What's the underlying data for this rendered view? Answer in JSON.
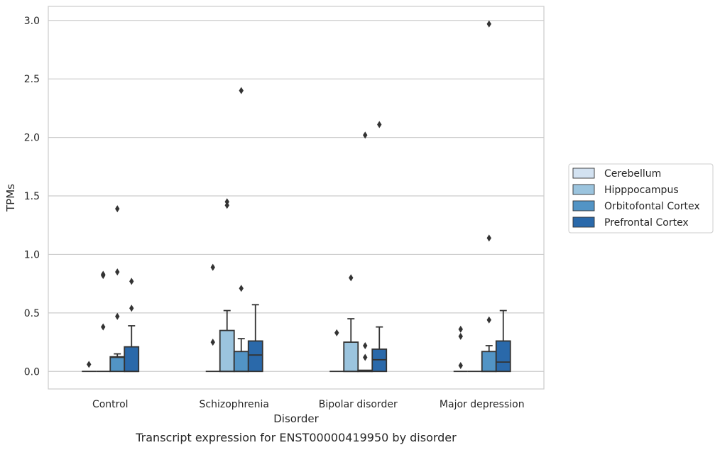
{
  "chart_data": {
    "type": "box",
    "caption": "Transcript expression for ENST00000419950 by disorder",
    "xlabel": "Disorder",
    "ylabel": "TPMs",
    "ylim": [
      -0.15,
      3.12
    ],
    "yticks": [
      0.0,
      0.5,
      1.0,
      1.5,
      2.0,
      2.5,
      3.0
    ],
    "ytick_labels": [
      "0.0",
      "0.5",
      "1.0",
      "1.5",
      "2.0",
      "2.5",
      "3.0"
    ],
    "grid": "horizontal",
    "legend_position": "right",
    "categories": [
      "Control",
      "Schizophrenia",
      "Bipolar disorder",
      "Major depression"
    ],
    "series": [
      {
        "name": "Cerebellum",
        "color": "#d3e2f1",
        "boxes": [
          {
            "q1": 0,
            "median": 0,
            "q3": 0,
            "whisker_low": 0,
            "whisker_high": 0,
            "outliers": [
              0.06
            ]
          },
          {
            "q1": 0,
            "median": 0,
            "q3": 0,
            "whisker_low": 0,
            "whisker_high": 0,
            "outliers": [
              0.25,
              0.89
            ]
          },
          {
            "q1": 0,
            "median": 0,
            "q3": 0,
            "whisker_low": 0,
            "whisker_high": 0,
            "outliers": [
              0.33
            ]
          },
          {
            "q1": 0,
            "median": 0,
            "q3": 0,
            "whisker_low": 0,
            "whisker_high": 0,
            "outliers": [
              0.05,
              0.3,
              0.36
            ]
          }
        ]
      },
      {
        "name": "Hipppocampus",
        "color": "#9bc4de",
        "boxes": [
          {
            "q1": 0,
            "median": 0,
            "q3": 0,
            "whisker_low": 0,
            "whisker_high": 0,
            "outliers": [
              0.38,
              0.82,
              0.83
            ]
          },
          {
            "q1": 0,
            "median": 0,
            "q3": 0.35,
            "whisker_low": 0,
            "whisker_high": 0.52,
            "outliers": [
              1.42,
              1.45
            ]
          },
          {
            "q1": 0,
            "median": 0,
            "q3": 0.25,
            "whisker_low": 0,
            "whisker_high": 0.45,
            "outliers": [
              0.8
            ]
          },
          {
            "q1": 0,
            "median": 0,
            "q3": 0,
            "whisker_low": 0,
            "whisker_high": 0,
            "outliers": []
          }
        ]
      },
      {
        "name": "Orbitofontal Cortex",
        "color": "#5294c5",
        "boxes": [
          {
            "q1": 0,
            "median": 0.12,
            "q3": 0.125,
            "whisker_low": 0,
            "whisker_high": 0.15,
            "outliers": [
              0.47,
              0.85,
              1.39
            ]
          },
          {
            "q1": 0,
            "median": 0,
            "q3": 0.17,
            "whisker_low": 0,
            "whisker_high": 0.28,
            "outliers": [
              0.71,
              2.4
            ]
          },
          {
            "q1": 0,
            "median": 0,
            "q3": 0.01,
            "whisker_low": 0,
            "whisker_high": 0.01,
            "outliers": [
              0.12,
              0.22,
              2.02
            ]
          },
          {
            "q1": 0,
            "median": 0,
            "q3": 0.17,
            "whisker_low": 0,
            "whisker_high": 0.22,
            "outliers": [
              0.44,
              1.14,
              2.97
            ]
          }
        ]
      },
      {
        "name": "Prefrontal Cortex",
        "color": "#2a69aa",
        "boxes": [
          {
            "q1": 0,
            "median": 0,
            "q3": 0.21,
            "whisker_low": 0,
            "whisker_high": 0.39,
            "outliers": [
              0.54,
              0.77
            ]
          },
          {
            "q1": 0,
            "median": 0.14,
            "q3": 0.26,
            "whisker_low": 0,
            "whisker_high": 0.57,
            "outliers": []
          },
          {
            "q1": 0,
            "median": 0.1,
            "q3": 0.19,
            "whisker_low": 0,
            "whisker_high": 0.38,
            "outliers": [
              2.11
            ]
          },
          {
            "q1": 0,
            "median": 0.08,
            "q3": 0.26,
            "whisker_low": 0,
            "whisker_high": 0.52,
            "outliers": []
          }
        ]
      }
    ]
  },
  "colors": {
    "grid": "#cccccc",
    "frame": "#cccccc",
    "box_edge": "#333333",
    "text": "#262626"
  }
}
